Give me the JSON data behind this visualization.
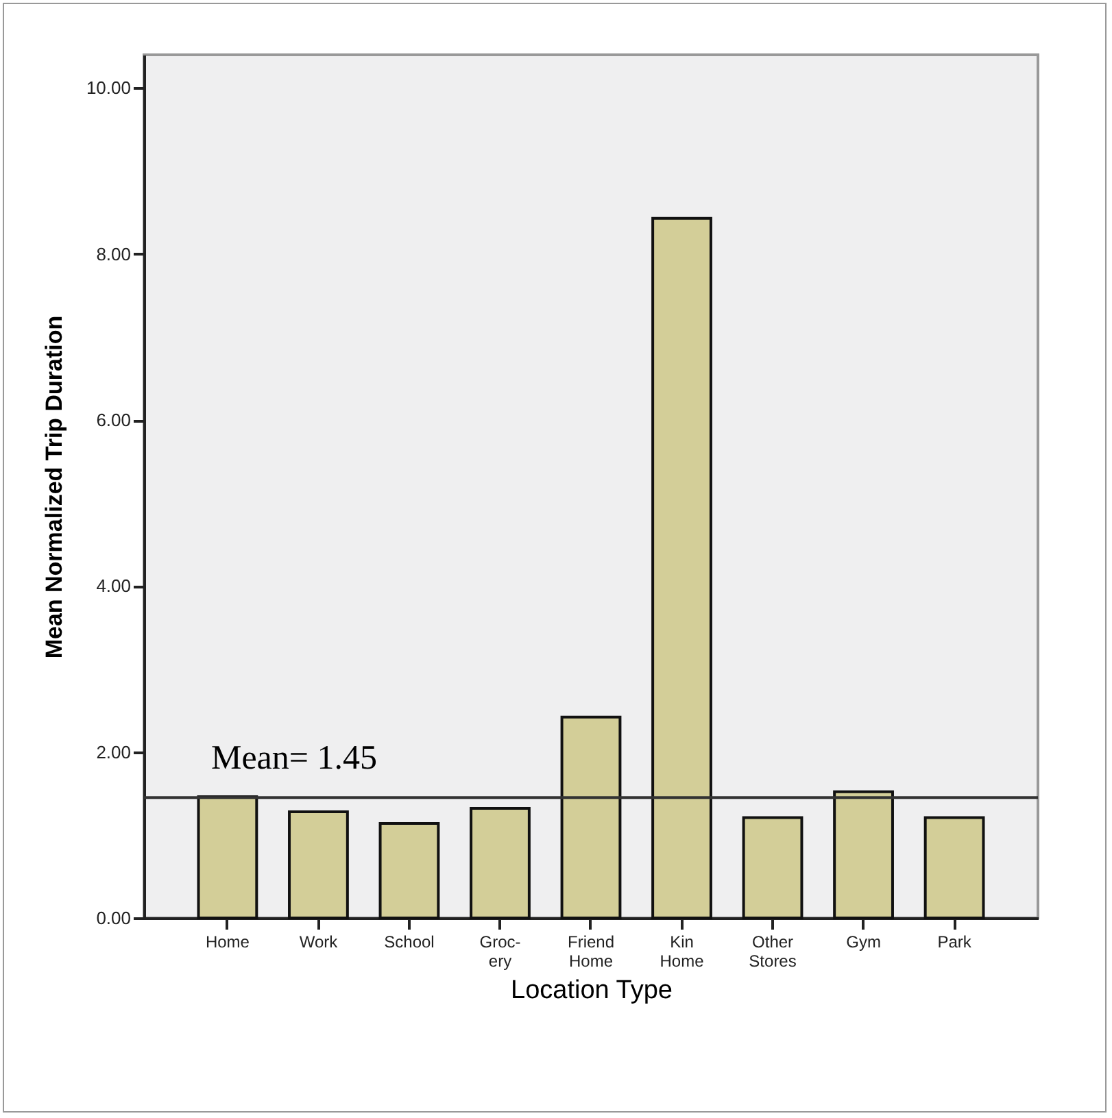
{
  "chart_data": {
    "type": "bar",
    "xlabel": "Location Type",
    "ylabel": "Mean Normalized Trip Duration",
    "categories": [
      "Home",
      "Work",
      "School",
      "Groc-\nery",
      "Friend\nHome",
      "Kin\nHome",
      "Other\nStores",
      "Gym",
      "Park"
    ],
    "values": [
      1.46,
      1.28,
      1.14,
      1.32,
      2.42,
      8.43,
      1.21,
      1.52,
      1.21
    ],
    "color": "#d3ce98",
    "ylim": [
      0,
      10.4
    ],
    "yticks": [
      {
        "value": 0,
        "label": "0.00"
      },
      {
        "value": 2,
        "label": "2.00"
      },
      {
        "value": 4,
        "label": "4.00"
      },
      {
        "value": 6,
        "label": "6.00"
      },
      {
        "value": 8,
        "label": "8.00"
      },
      {
        "value": 10,
        "label": "10.00"
      }
    ],
    "ref_lines": [
      {
        "axis": "y",
        "value": 1.45,
        "label": "Mean= 1.45",
        "color": "#333333"
      }
    ],
    "grid": false
  }
}
